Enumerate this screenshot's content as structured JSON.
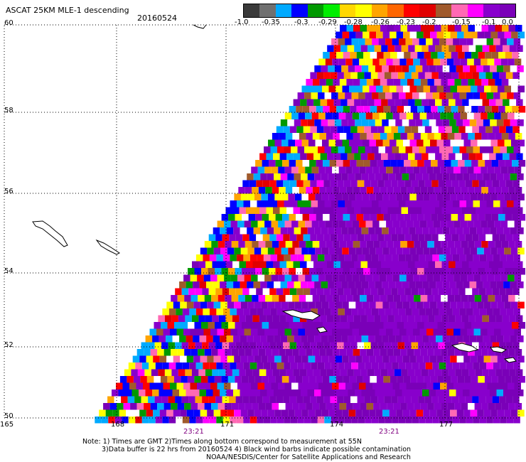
{
  "header": {
    "product": "ASCAT 25KM MLE-1 descending",
    "date": "20160524"
  },
  "colorbar": {
    "colors": [
      "#3a3a3a",
      "#707070",
      "#00aaff",
      "#0000ff",
      "#009900",
      "#00ee00",
      "#ffd700",
      "#ffff00",
      "#ffa500",
      "#ff6600",
      "#ff0000",
      "#e00000",
      "#a05a2c",
      "#ff69b4",
      "#ff00ff",
      "#8800cc",
      "#7a00b8"
    ],
    "tick_labels": [
      "-1.0",
      "-0.35",
      "-0.3",
      "-0.29",
      "-0.28",
      "-0.26",
      "-0.23",
      "-0.2",
      "-0.15",
      "-0.1",
      "0.0"
    ]
  },
  "map": {
    "lat_labels": [
      "60",
      "58",
      "56",
      "54",
      "52",
      "50"
    ],
    "lon_labels": [
      "165",
      "168",
      "171",
      "174",
      "177"
    ],
    "time_labels": [
      "23:21",
      "23:21"
    ],
    "swath_palette": [
      "#8800cc",
      "#8800cc",
      "#8800cc",
      "#7a00b8",
      "#ff00ff",
      "#ff0000",
      "#ffa500",
      "#ffff00",
      "#0000ff",
      "#009900",
      "#ffffff",
      "#a05a2c",
      "#00aaff",
      "#ff69b4",
      "#e00000"
    ]
  },
  "notes": {
    "line1": "Note: 1) Times are GMT 2)Times along bottom correspond to measurement at 55N",
    "line2": "3)Data buffer is 22 hrs from 20160524 4) Black wind barbs indicate possible contamination",
    "line3": "NOAA/NESDIS/Center for Satellite Applications and Research"
  }
}
